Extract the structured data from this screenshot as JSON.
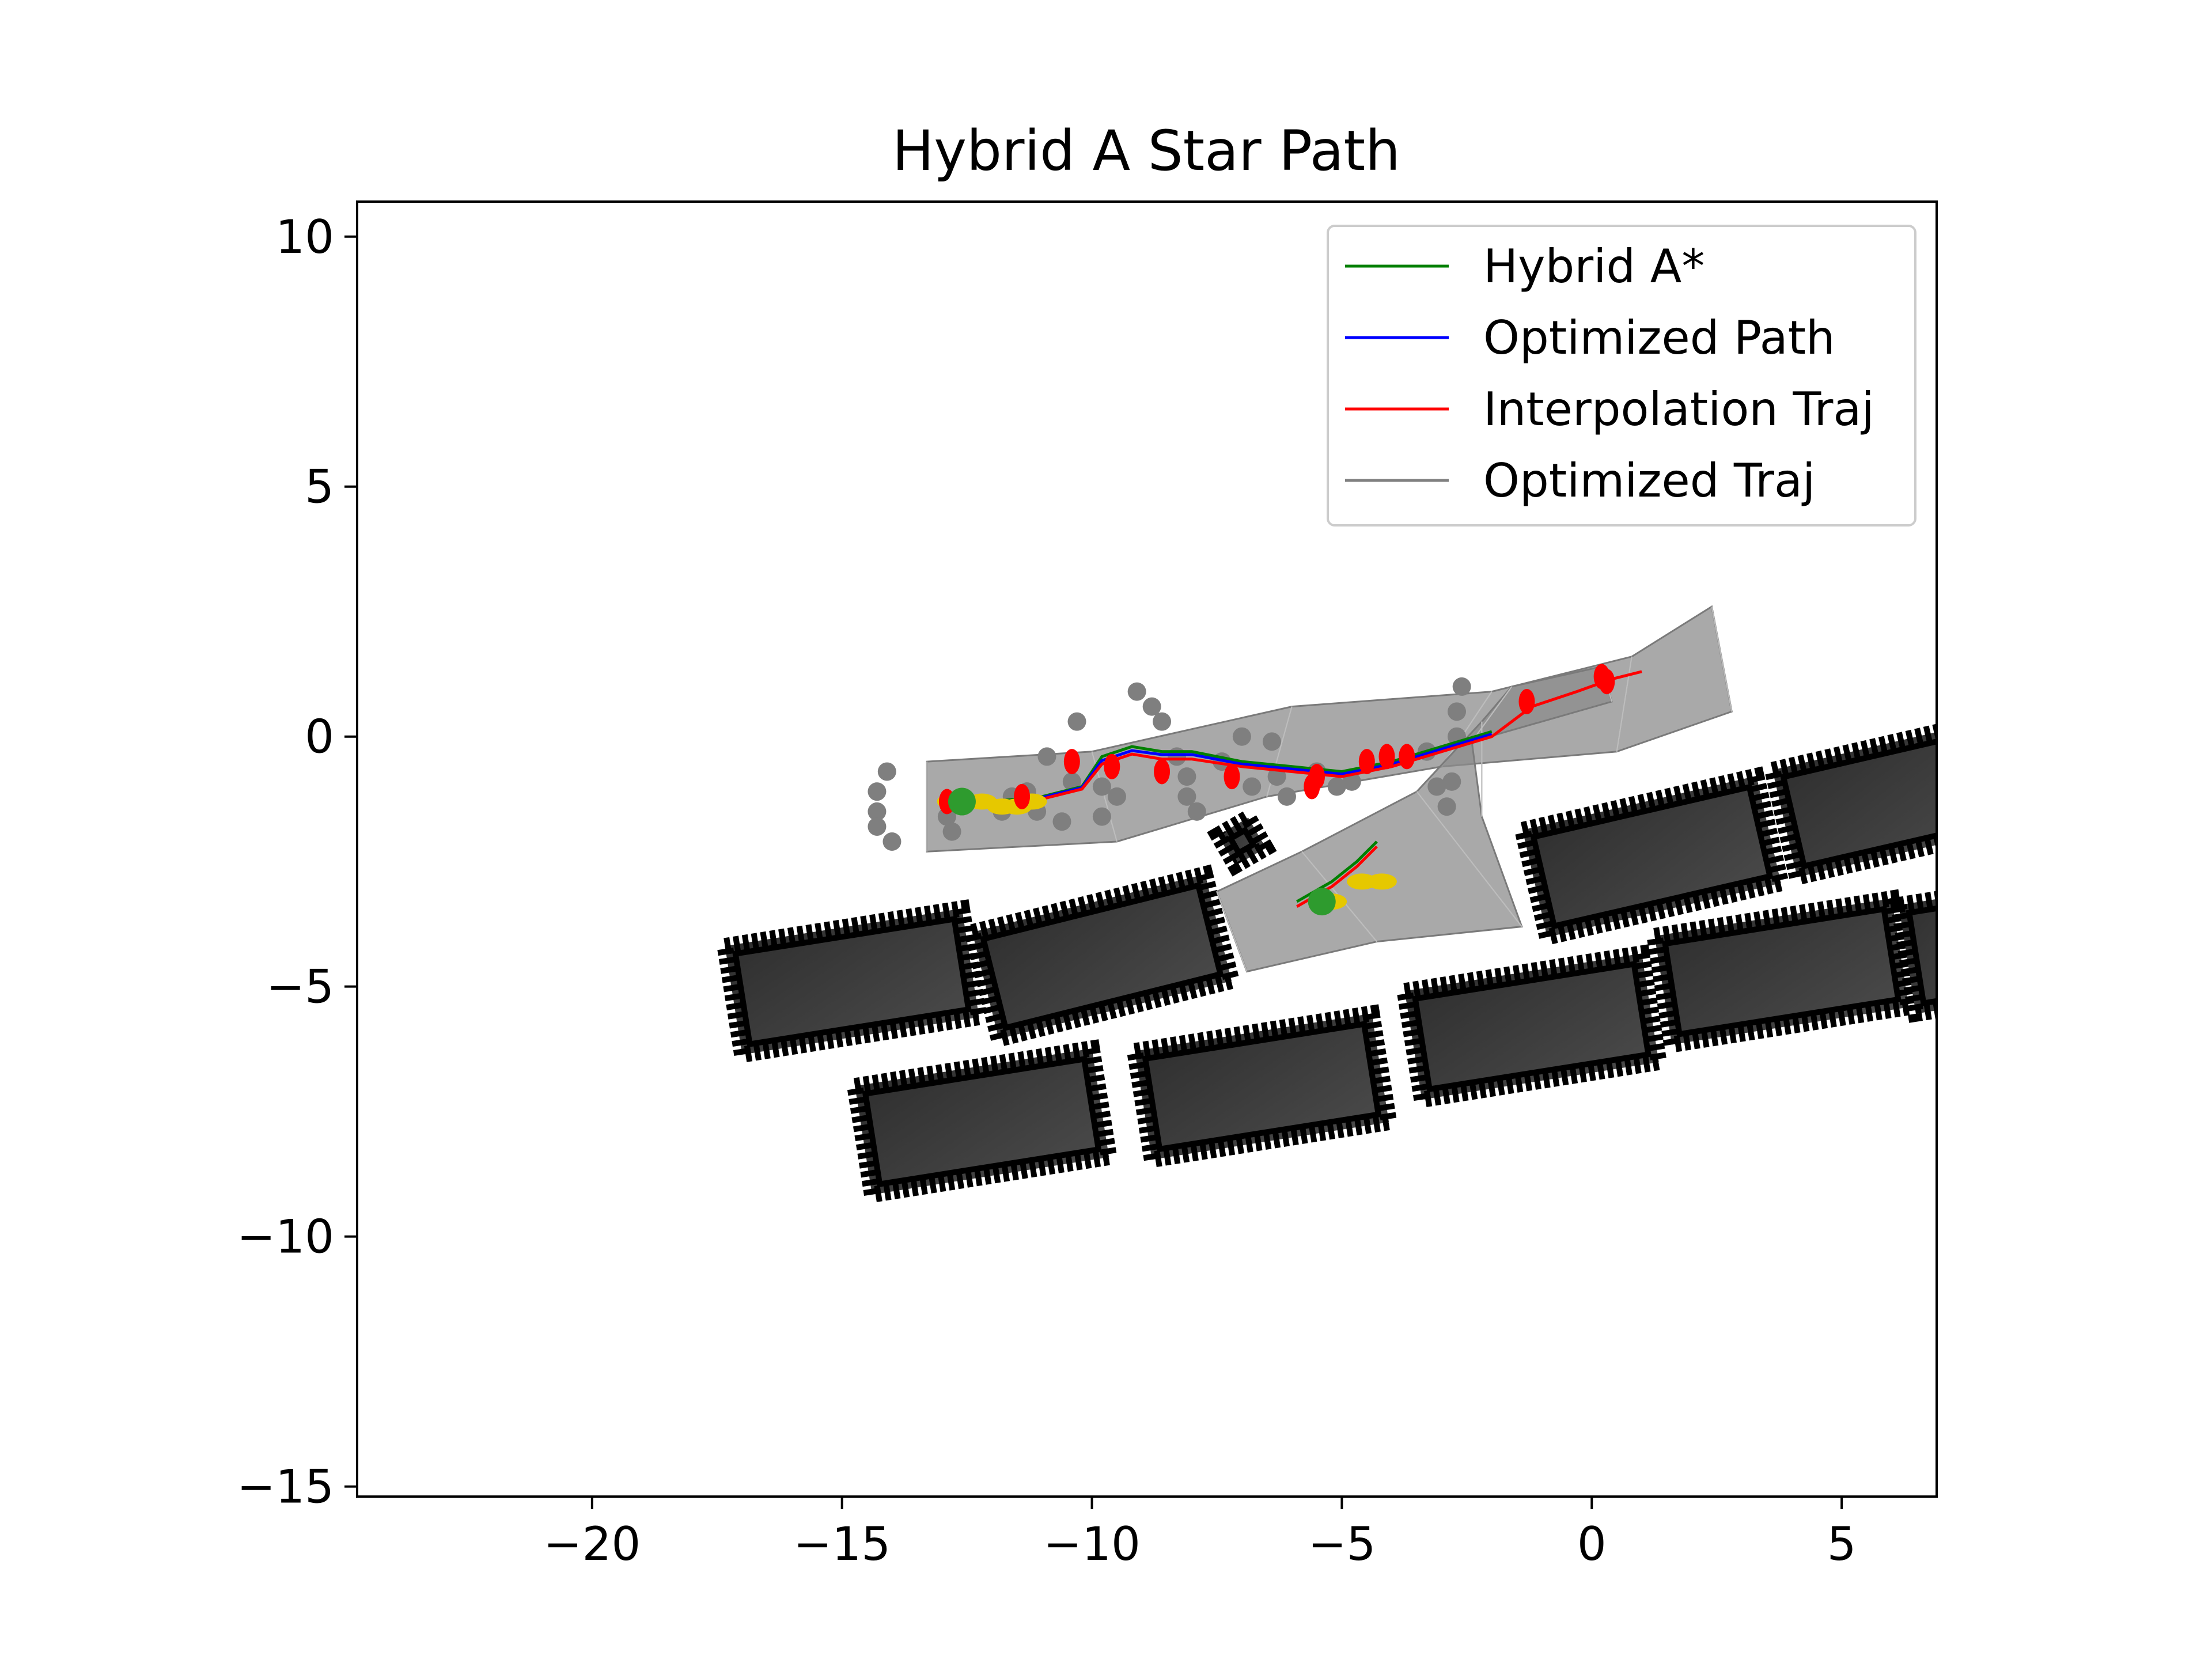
{
  "chart_data": {
    "type": "line",
    "title": "Hybrid A Star Path",
    "xlabel": "",
    "ylabel": "",
    "xlim": [
      -24.7,
      6.9
    ],
    "ylim": [
      -15.2,
      10.7
    ],
    "xticks": [
      -20,
      -15,
      -10,
      -5,
      0,
      5
    ],
    "yticks": [
      10,
      5,
      0,
      -5,
      -10,
      -15
    ],
    "xtick_labels": [
      "−20",
      "−15",
      "−10",
      "−5",
      "0",
      "5"
    ],
    "ytick_labels": [
      "10",
      "5",
      "0",
      "−5",
      "−10",
      "−15"
    ],
    "grid": false,
    "legend_position": "top-right",
    "series": [
      {
        "name": "Hybrid A*",
        "color": "#008000",
        "segments": [
          [
            [
              -12.8,
              -1.3
            ],
            [
              -12.0,
              -1.3
            ],
            [
              -11.0,
              -1.2
            ],
            [
              -10.2,
              -1.0
            ],
            [
              -9.8,
              -0.4
            ],
            [
              -9.2,
              -0.2
            ],
            [
              -8.6,
              -0.3
            ],
            [
              -8.0,
              -0.3
            ],
            [
              -7.0,
              -0.5
            ],
            [
              -6.0,
              -0.6
            ],
            [
              -5.0,
              -0.7
            ],
            [
              -4.0,
              -0.5
            ],
            [
              -3.0,
              -0.2
            ],
            [
              -2.0,
              0.1
            ]
          ],
          [
            [
              -5.9,
              -3.3
            ],
            [
              -5.2,
              -2.9
            ],
            [
              -4.7,
              -2.5
            ],
            [
              -4.3,
              -2.1
            ]
          ]
        ]
      },
      {
        "name": "Optimized Path",
        "color": "#0000ff",
        "segments": [
          [
            [
              -12.8,
              -1.35
            ],
            [
              -12.0,
              -1.32
            ],
            [
              -11.0,
              -1.22
            ],
            [
              -10.2,
              -1.02
            ],
            [
              -9.8,
              -0.48
            ],
            [
              -9.2,
              -0.28
            ],
            [
              -8.6,
              -0.36
            ],
            [
              -8.0,
              -0.36
            ],
            [
              -7.0,
              -0.55
            ],
            [
              -6.0,
              -0.65
            ],
            [
              -5.0,
              -0.75
            ],
            [
              -4.0,
              -0.55
            ],
            [
              -3.0,
              -0.25
            ],
            [
              -2.0,
              0.05
            ]
          ]
        ]
      },
      {
        "name": "Interpolation Traj",
        "color": "#ff0000",
        "segments": [
          [
            [
              -12.8,
              -1.4
            ],
            [
              -12.0,
              -1.35
            ],
            [
              -11.0,
              -1.25
            ],
            [
              -10.2,
              -1.05
            ],
            [
              -9.8,
              -0.55
            ],
            [
              -9.2,
              -0.35
            ],
            [
              -8.6,
              -0.45
            ],
            [
              -8.0,
              -0.45
            ],
            [
              -7.0,
              -0.6
            ],
            [
              -6.0,
              -0.7
            ],
            [
              -5.0,
              -0.8
            ],
            [
              -4.0,
              -0.6
            ],
            [
              -3.0,
              -0.3
            ],
            [
              -2.0,
              0.0
            ],
            [
              -1.2,
              0.6
            ],
            [
              -0.3,
              0.9
            ],
            [
              0.4,
              1.15
            ],
            [
              1.0,
              1.3
            ]
          ],
          [
            [
              -5.9,
              -3.4
            ],
            [
              -5.2,
              -3.0
            ],
            [
              -4.7,
              -2.6
            ],
            [
              -4.3,
              -2.2
            ]
          ]
        ]
      },
      {
        "name": "Optimized Traj",
        "color": "#808080",
        "segments": []
      }
    ],
    "obstacles": [
      {
        "cx": -14.8,
        "cy": -4.9,
        "w": 4.8,
        "h": 2.2,
        "angle_deg": 9
      },
      {
        "cx": -9.8,
        "cy": -4.4,
        "w": 4.8,
        "h": 2.2,
        "angle_deg": 14
      },
      {
        "cx": -12.2,
        "cy": -7.7,
        "w": 4.8,
        "h": 2.2,
        "angle_deg": 9
      },
      {
        "cx": -6.6,
        "cy": -7.0,
        "w": 4.8,
        "h": 2.2,
        "angle_deg": 9
      },
      {
        "cx": -1.2,
        "cy": -5.8,
        "w": 4.8,
        "h": 2.2,
        "angle_deg": 9
      },
      {
        "cx": 3.8,
        "cy": -4.7,
        "w": 4.8,
        "h": 2.2,
        "angle_deg": 9
      },
      {
        "cx": 1.2,
        "cy": -2.4,
        "w": 4.8,
        "h": 2.2,
        "angle_deg": 13
      },
      {
        "cx": 6.2,
        "cy": -1.2,
        "w": 4.8,
        "h": 2.2,
        "angle_deg": 13
      },
      {
        "cx": 7.3,
        "cy": -4.3,
        "w": 2.0,
        "h": 2.2,
        "angle_deg": 9
      },
      {
        "cx": -7.0,
        "cy": -2.1,
        "w": 0.7,
        "h": 0.7,
        "angle_deg": 30
      }
    ],
    "footprint_sweeps": [
      [
        [
          -13.3,
          -0.5
        ],
        [
          -10.0,
          -0.3
        ],
        [
          -6.0,
          0.6
        ],
        [
          -2.0,
          0.9
        ],
        [
          0.8,
          1.6
        ],
        [
          2.4,
          2.6
        ],
        [
          2.8,
          0.5
        ],
        [
          0.5,
          -0.3
        ],
        [
          -3.0,
          -0.6
        ],
        [
          -6.5,
          -1.2
        ],
        [
          -9.5,
          -2.1
        ],
        [
          -13.3,
          -2.3
        ]
      ],
      [
        [
          -7.5,
          -3.1
        ],
        [
          -5.8,
          -2.3
        ],
        [
          -3.5,
          -1.1
        ],
        [
          -2.2,
          0.3
        ],
        [
          -1.6,
          1.0
        ],
        [
          0.2,
          1.4
        ],
        [
          0.4,
          0.7
        ],
        [
          -2.4,
          -0.1
        ],
        [
          -2.2,
          -1.6
        ],
        [
          -1.4,
          -3.8
        ],
        [
          -4.3,
          -4.1
        ],
        [
          -6.9,
          -4.7
        ]
      ]
    ],
    "sample_points": [
      [
        -14.1,
        -0.7
      ],
      [
        -14.3,
        -1.1
      ],
      [
        -14.3,
        -1.5
      ],
      [
        -14.3,
        -1.8
      ],
      [
        -14.0,
        -2.1
      ],
      [
        -12.9,
        -1.6
      ],
      [
        -12.8,
        -1.9
      ],
      [
        -11.3,
        -1.1
      ],
      [
        -11.1,
        -1.5
      ],
      [
        -10.6,
        -1.7
      ],
      [
        -10.3,
        0.3
      ],
      [
        -9.1,
        0.9
      ],
      [
        -8.8,
        0.6
      ],
      [
        -8.6,
        0.3
      ],
      [
        -8.3,
        -0.4
      ],
      [
        -8.1,
        -0.8
      ],
      [
        -8.1,
        -1.2
      ],
      [
        -7.9,
        -1.5
      ],
      [
        -7.4,
        -0.5
      ],
      [
        -7.0,
        0.0
      ],
      [
        -6.8,
        -1.0
      ],
      [
        -6.4,
        -0.1
      ],
      [
        -6.3,
        -0.8
      ],
      [
        -6.1,
        -1.2
      ],
      [
        -5.5,
        -0.7
      ],
      [
        -5.1,
        -1.0
      ],
      [
        -4.8,
        -0.9
      ],
      [
        -3.3,
        -0.3
      ],
      [
        -2.7,
        0.0
      ],
      [
        -2.7,
        0.5
      ],
      [
        -2.6,
        1.0
      ],
      [
        -3.1,
        -1.0
      ],
      [
        -2.8,
        -0.9
      ],
      [
        -2.9,
        -1.4
      ],
      [
        -10.9,
        -0.4
      ],
      [
        -10.4,
        -0.9
      ],
      [
        -9.8,
        -1.0
      ],
      [
        -9.5,
        -1.2
      ],
      [
        -9.8,
        -1.6
      ],
      [
        -11.6,
        -1.2
      ],
      [
        -11.8,
        -1.5
      ]
    ],
    "red_markers": [
      [
        -12.9,
        -1.3
      ],
      [
        -11.4,
        -1.2
      ],
      [
        -10.4,
        -0.5
      ],
      [
        -9.6,
        -0.6
      ],
      [
        -8.6,
        -0.7
      ],
      [
        -7.2,
        -0.8
      ],
      [
        -5.6,
        -1.0
      ],
      [
        -5.5,
        -0.8
      ],
      [
        -4.5,
        -0.5
      ],
      [
        -4.1,
        -0.4
      ],
      [
        -3.7,
        -0.4
      ],
      [
        -1.3,
        0.7
      ],
      [
        0.2,
        1.2
      ],
      [
        0.3,
        1.1
      ]
    ],
    "yellow_markers": [
      [
        -12.8,
        -1.3
      ],
      [
        -12.2,
        -1.3
      ],
      [
        -11.8,
        -1.4
      ],
      [
        -11.5,
        -1.4
      ],
      [
        -11.2,
        -1.3
      ],
      [
        -5.2,
        -3.3
      ],
      [
        -4.6,
        -2.9
      ],
      [
        -4.2,
        -2.9
      ]
    ],
    "green_markers": [
      [
        -5.4,
        -3.3
      ],
      [
        -12.6,
        -1.3
      ]
    ]
  }
}
